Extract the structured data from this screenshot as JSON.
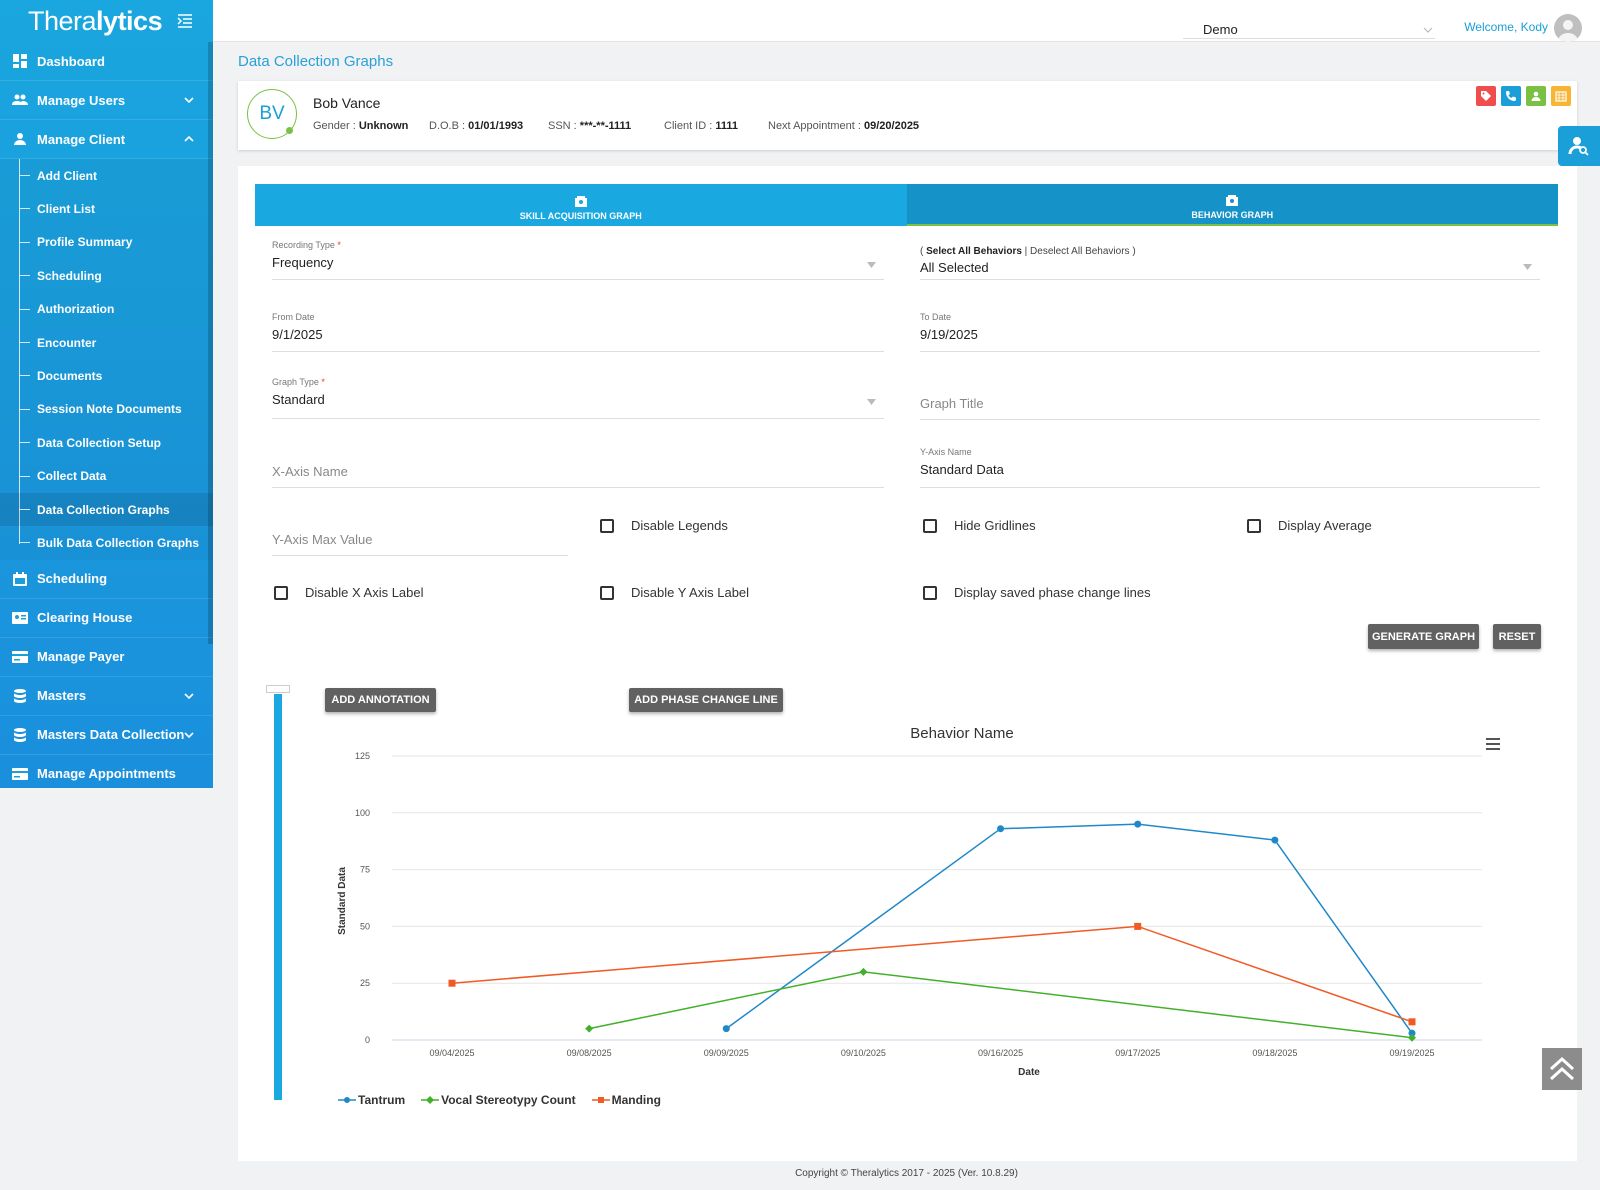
{
  "app": {
    "logo_light": "Thera",
    "logo_bold": "lytics",
    "org": "Demo",
    "welcome": "Welcome, Kody",
    "page_title": "Data Collection Graphs"
  },
  "sidebar": {
    "items": [
      {
        "label": "Dashboard",
        "icon": "dashboard-icon"
      },
      {
        "label": "Manage Users",
        "icon": "users-icon"
      },
      {
        "label": "Manage Client",
        "icon": "user-icon"
      },
      {
        "label": "Scheduling",
        "icon": "calendar-icon"
      },
      {
        "label": "Clearing House",
        "icon": "id-card-icon"
      },
      {
        "label": "Manage Payer",
        "icon": "card-icon"
      },
      {
        "label": "Masters",
        "icon": "database-icon"
      },
      {
        "label": "Masters Data Collection",
        "icon": "database-icon"
      },
      {
        "label": "Manage Appointments",
        "icon": "card-icon"
      }
    ],
    "client_sub": [
      "Add Client",
      "Client List",
      "Profile Summary",
      "Scheduling",
      "Authorization",
      "Encounter",
      "Documents",
      "Session Note Documents",
      "Data Collection Setup",
      "Collect Data",
      "Data Collection Graphs",
      "Bulk Data Collection Graphs"
    ]
  },
  "client": {
    "initials": "BV",
    "name": "Bob Vance",
    "gender_label": "Gender : ",
    "gender": "Unknown",
    "dob_label": "D.O.B : ",
    "dob": "01/01/1993",
    "ssn_label": "SSN : ",
    "ssn": "***-**-1111",
    "id_label": "Client ID : ",
    "id": "1111",
    "appt_label": "Next Appointment : ",
    "appt": "09/20/2025"
  },
  "tabs": {
    "skill": "SKILL ACQUISITION GRAPH",
    "behavior": "BEHAVIOR GRAPH"
  },
  "form": {
    "recording_type_label": "Recording Type",
    "recording_type": "Frequency",
    "select_all": "Select All Behaviors",
    "deselect_all": "Deselect All Behaviors",
    "behaviors_value": "All Selected",
    "from_label": "From Date",
    "from": "9/1/2025",
    "to_label": "To Date",
    "to": "9/19/2025",
    "graph_type_label": "Graph Type",
    "graph_type": "Standard",
    "graph_title_ph": "Graph Title",
    "x_axis_ph": "X-Axis Name",
    "y_axis_label": "Y-Axis Name",
    "y_axis": "Standard Data",
    "y_max_ph": "Y-Axis Max Value",
    "disable_legends": "Disable Legends",
    "hide_gridlines": "Hide Gridlines",
    "display_average": "Display Average",
    "disable_x": "Disable X Axis Label",
    "disable_y": "Disable Y Axis Label",
    "phase_lines": "Display saved phase change lines",
    "generate": "GENERATE GRAPH",
    "reset": "RESET",
    "add_annotation": "ADD ANNOTATION",
    "add_phase": "ADD PHASE CHANGE LINE"
  },
  "chart_data": {
    "type": "line",
    "title": "Behavior Name",
    "xlabel": "Date",
    "ylabel": "Standard Data",
    "ylim": [
      0,
      125
    ],
    "yticks": [
      0,
      25,
      50,
      75,
      100,
      125
    ],
    "categories": [
      "09/04/2025",
      "09/08/2025",
      "09/09/2025",
      "09/10/2025",
      "09/16/2025",
      "09/17/2025",
      "09/18/2025",
      "09/19/2025"
    ],
    "grid": true,
    "legend": "bottom-left",
    "series": [
      {
        "name": "Tantrum",
        "color": "#1f88c8",
        "marker": "circle",
        "values": [
          null,
          null,
          5,
          null,
          93,
          95,
          88,
          3
        ]
      },
      {
        "name": "Vocal Stereotypy Count",
        "color": "#43b02a",
        "marker": "diamond",
        "values": [
          null,
          5,
          null,
          30,
          null,
          null,
          null,
          1
        ]
      },
      {
        "name": "Manding",
        "color": "#f15a24",
        "marker": "square",
        "values": [
          25,
          null,
          null,
          null,
          null,
          50,
          null,
          8
        ]
      }
    ]
  },
  "colors": {
    "accent": "#1aa8e0",
    "green": "#7ac143",
    "button": "#616161"
  },
  "footer": "Copyright © Theralytics 2017 - 2025 (Ver. 10.8.29)"
}
